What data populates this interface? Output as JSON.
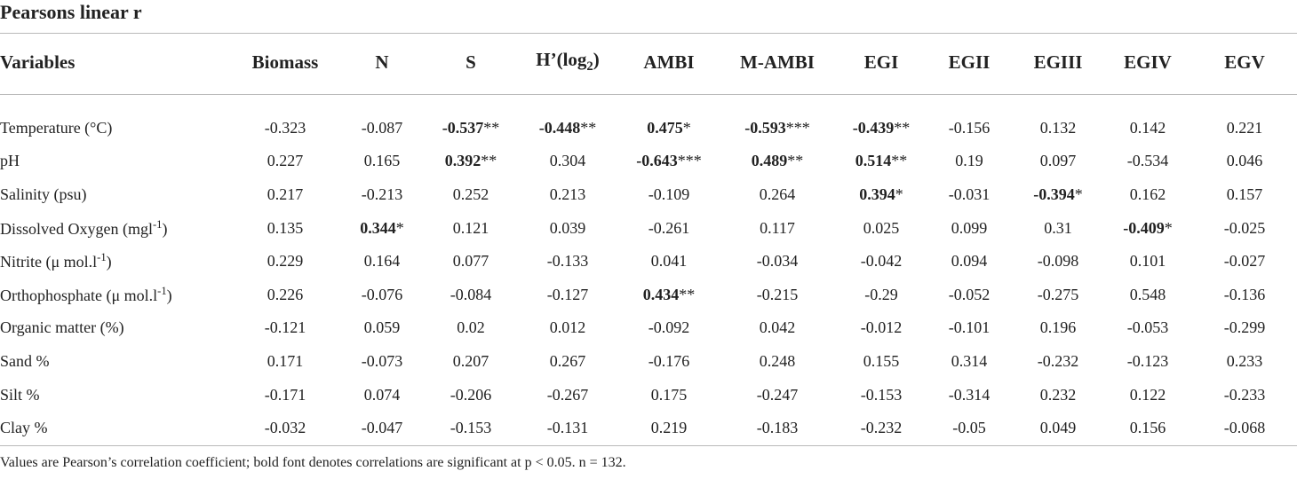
{
  "title": "Pearsons linear r",
  "columns": [
    "Variables",
    "Biomass",
    "N",
    "S",
    "H’(log",
    "AMBI",
    "M-AMBI",
    "EGI",
    "EGII",
    "EGIII",
    "EGIV",
    "EGV"
  ],
  "h_subscript": "2",
  "h_suffix": ")",
  "rows": [
    {
      "label": "Temperature (°C)",
      "cells": [
        {
          "v": "-0.323"
        },
        {
          "v": "-0.087"
        },
        {
          "v": "-0.537",
          "b": true,
          "s": "**"
        },
        {
          "v": "-0.448",
          "b": true,
          "s": "**"
        },
        {
          "v": "0.475",
          "b": true,
          "s": "*"
        },
        {
          "v": "-0.593",
          "b": true,
          "s": "***"
        },
        {
          "v": "-0.439",
          "b": true,
          "s": "**"
        },
        {
          "v": "-0.156"
        },
        {
          "v": "0.132"
        },
        {
          "v": "0.142"
        },
        {
          "v": "0.221"
        }
      ]
    },
    {
      "label": "pH",
      "cells": [
        {
          "v": "0.227"
        },
        {
          "v": "0.165"
        },
        {
          "v": "0.392",
          "b": true,
          "s": "**"
        },
        {
          "v": "0.304"
        },
        {
          "v": "-0.643",
          "b": true,
          "s": "***"
        },
        {
          "v": "0.489",
          "b": true,
          "s": "**"
        },
        {
          "v": "0.514",
          "b": true,
          "s": "**"
        },
        {
          "v": "0.19"
        },
        {
          "v": "0.097"
        },
        {
          "v": "-0.534"
        },
        {
          "v": "0.046"
        }
      ]
    },
    {
      "label": "Salinity (psu)",
      "cells": [
        {
          "v": "0.217"
        },
        {
          "v": "-0.213"
        },
        {
          "v": "0.252"
        },
        {
          "v": "0.213"
        },
        {
          "v": "-0.109"
        },
        {
          "v": "0.264"
        },
        {
          "v": "0.394",
          "b": true,
          "s": "*"
        },
        {
          "v": "-0.031"
        },
        {
          "v": "-0.394",
          "b": true,
          "s": "*"
        },
        {
          "v": "0.162"
        },
        {
          "v": "0.157"
        }
      ]
    },
    {
      "label": "Dissolved Oxygen (mgl",
      "sup": "-1",
      "after": ")",
      "cells": [
        {
          "v": "0.135"
        },
        {
          "v": "0.344",
          "b": true,
          "s": "*"
        },
        {
          "v": "0.121"
        },
        {
          "v": "0.039"
        },
        {
          "v": "-0.261"
        },
        {
          "v": "0.117"
        },
        {
          "v": "0.025"
        },
        {
          "v": "0.099"
        },
        {
          "v": "0.31"
        },
        {
          "v": "-0.409",
          "b": true,
          "s": "*"
        },
        {
          "v": "-0.025"
        }
      ]
    },
    {
      "label": "Nitrite (μ mol.l",
      "sup": "-1",
      "after": ")",
      "cells": [
        {
          "v": "0.229"
        },
        {
          "v": "0.164"
        },
        {
          "v": "0.077"
        },
        {
          "v": "-0.133"
        },
        {
          "v": "0.041"
        },
        {
          "v": "-0.034"
        },
        {
          "v": "-0.042"
        },
        {
          "v": "0.094"
        },
        {
          "v": "-0.098"
        },
        {
          "v": "0.101"
        },
        {
          "v": "-0.027"
        }
      ]
    },
    {
      "label": "Orthophosphate (μ mol.l",
      "sup": "-1",
      "after": ")",
      "cells": [
        {
          "v": "0.226"
        },
        {
          "v": "-0.076"
        },
        {
          "v": "-0.084"
        },
        {
          "v": "-0.127"
        },
        {
          "v": "0.434",
          "b": true,
          "s": "**"
        },
        {
          "v": "-0.215"
        },
        {
          "v": "-0.29"
        },
        {
          "v": "-0.052"
        },
        {
          "v": "-0.275"
        },
        {
          "v": "0.548"
        },
        {
          "v": "-0.136"
        }
      ]
    },
    {
      "label": "Organic matter (%)",
      "cells": [
        {
          "v": "-0.121"
        },
        {
          "v": "0.059"
        },
        {
          "v": "0.02"
        },
        {
          "v": "0.012"
        },
        {
          "v": "-0.092"
        },
        {
          "v": "0.042"
        },
        {
          "v": "-0.012"
        },
        {
          "v": "-0.101"
        },
        {
          "v": "0.196"
        },
        {
          "v": "-0.053"
        },
        {
          "v": "-0.299"
        }
      ]
    },
    {
      "label": "Sand %",
      "cells": [
        {
          "v": "0.171"
        },
        {
          "v": "-0.073"
        },
        {
          "v": "0.207"
        },
        {
          "v": "0.267"
        },
        {
          "v": "-0.176"
        },
        {
          "v": "0.248"
        },
        {
          "v": "0.155"
        },
        {
          "v": "0.314"
        },
        {
          "v": "-0.232"
        },
        {
          "v": "-0.123"
        },
        {
          "v": "0.233"
        }
      ]
    },
    {
      "label": "Silt %",
      "cells": [
        {
          "v": "-0.171"
        },
        {
          "v": "0.074"
        },
        {
          "v": "-0.206"
        },
        {
          "v": "-0.267"
        },
        {
          "v": "0.175"
        },
        {
          "v": "-0.247"
        },
        {
          "v": "-0.153"
        },
        {
          "v": "-0.314"
        },
        {
          "v": "0.232"
        },
        {
          "v": "0.122"
        },
        {
          "v": "-0.233"
        }
      ]
    },
    {
      "label": "Clay %",
      "cells": [
        {
          "v": "-0.032"
        },
        {
          "v": "-0.047"
        },
        {
          "v": "-0.153"
        },
        {
          "v": "-0.131"
        },
        {
          "v": "0.219"
        },
        {
          "v": "-0.183"
        },
        {
          "v": "-0.232"
        },
        {
          "v": "-0.05"
        },
        {
          "v": "0.049"
        },
        {
          "v": "0.156"
        },
        {
          "v": "-0.068"
        }
      ]
    }
  ],
  "footnote": "Values are Pearson’s correlation coefficient; bold font denotes correlations are significant at p < 0.05. n = 132.",
  "colors": {
    "text": "#222222",
    "rule": "#b9b9b9",
    "background": "#ffffff"
  }
}
